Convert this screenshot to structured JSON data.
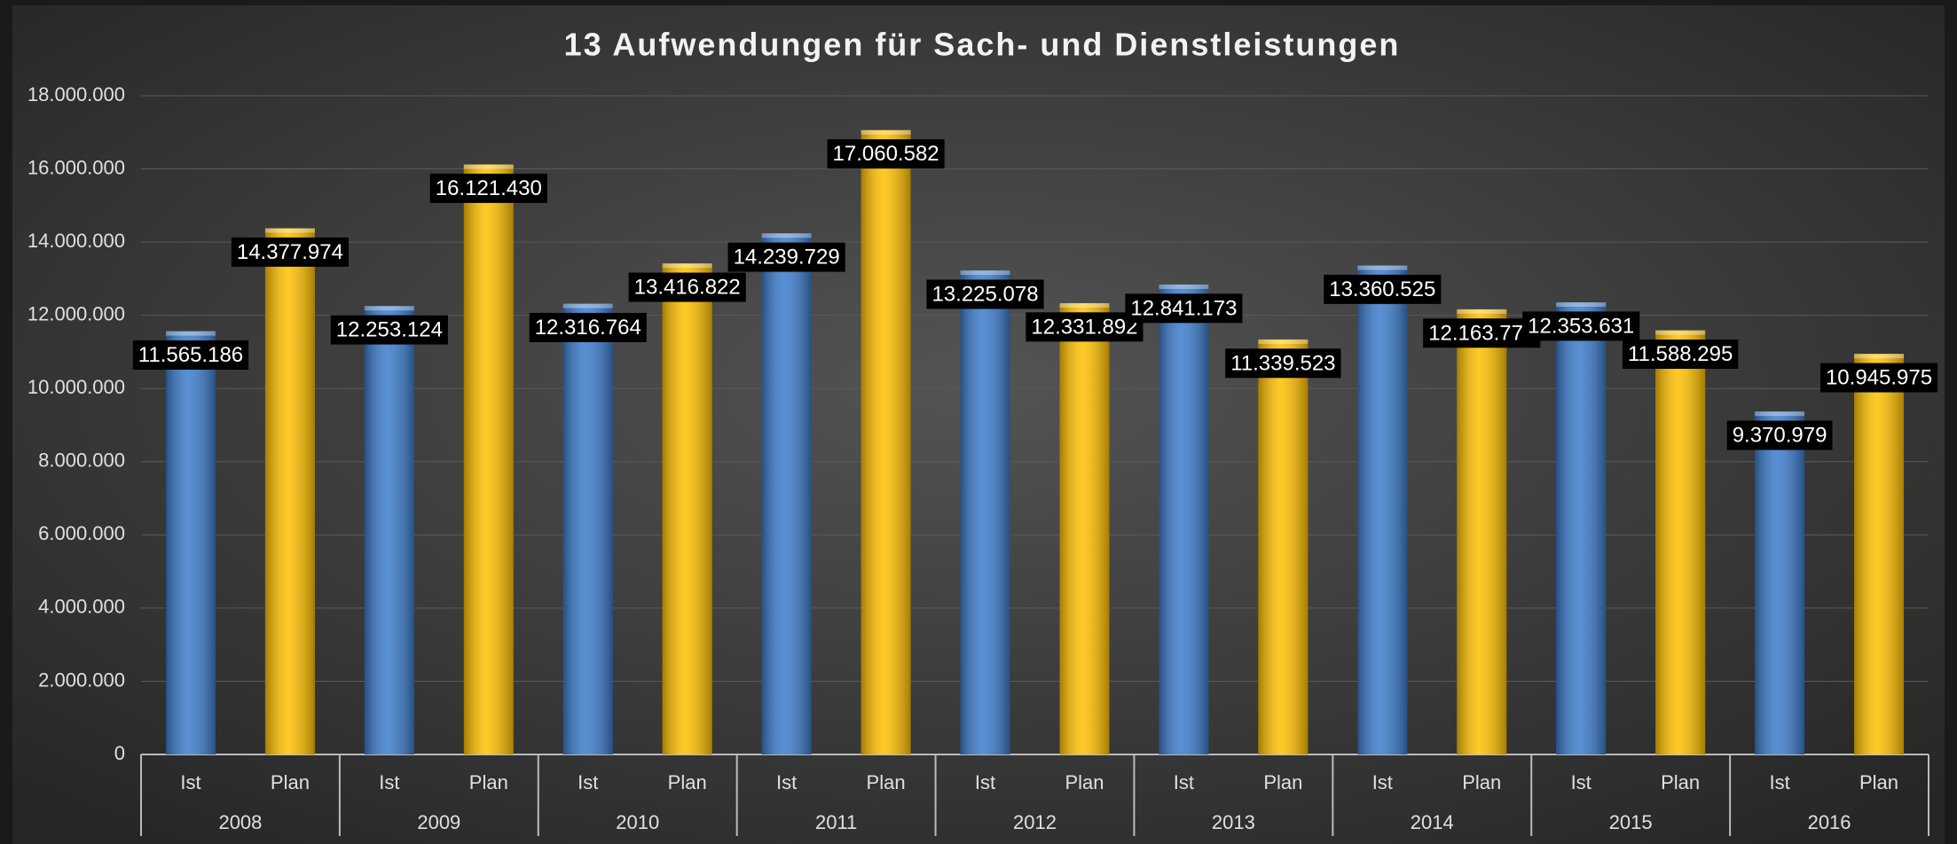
{
  "chart_data": {
    "type": "bar",
    "title": "13 Aufwendungen für Sach- und Dienstleistungen",
    "categories": [
      "2008",
      "2009",
      "2010",
      "2011",
      "2012",
      "2013",
      "2014",
      "2015",
      "2016"
    ],
    "series": [
      {
        "name": "Ist",
        "color": "#3b7bcb",
        "values": [
          11565186,
          12253124,
          12316764,
          14239729,
          13225078,
          12841173,
          13360525,
          12353631,
          9370979
        ],
        "value_labels": [
          "11.565.186",
          "12.253.124",
          "12.316.764",
          "14.239.729",
          "13.225.078",
          "12.841.173",
          "13.360.525",
          "12.353.631",
          "9.370.979"
        ]
      },
      {
        "name": "Plan",
        "color": "#ffc000",
        "values": [
          14377974,
          16121430,
          13416822,
          17060582,
          12331892,
          11339523,
          12163778,
          11588295,
          10945975
        ],
        "value_labels": [
          "14.377.974",
          "16.121.430",
          "13.416.822",
          "17.060.582",
          "12.331.892",
          "11.339.523",
          "12.163.778",
          "11.588.295",
          "10.945.975"
        ]
      }
    ],
    "ylim": [
      0,
      18000000
    ],
    "yticks": [
      0,
      {
        "value": 2000000,
        "label": "2.000.000"
      },
      {
        "value": 4000000,
        "label": "4.000.000"
      },
      {
        "value": 6000000,
        "label": "6.000.000"
      },
      {
        "value": 8000000,
        "label": "8.000.000"
      },
      {
        "value": 10000000,
        "label": "10.000.000"
      },
      {
        "value": 12000000,
        "label": "12.000.000"
      },
      {
        "value": 14000000,
        "label": "14.000.000"
      },
      {
        "value": 16000000,
        "label": "16.000.000"
      },
      {
        "value": 18000000,
        "label": "18.000.000"
      }
    ],
    "grid": true
  }
}
